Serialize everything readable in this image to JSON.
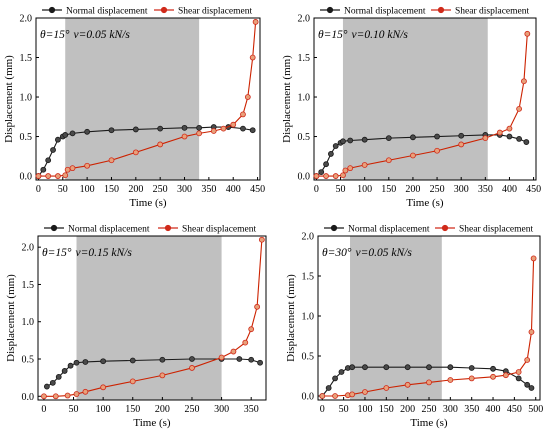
{
  "colors": {
    "normal": "#1a1a1a",
    "shear": "#d02a1a",
    "shear_fill": "#e8a07a",
    "band": "#c0c0c0",
    "band_edge": "#8a8a8a",
    "tail_line": "#cc2200"
  },
  "chart_data": [
    {
      "type": "line",
      "annotation": {
        "theta": "θ=15°",
        "rate": "v=0.05 kN/s"
      },
      "xlabel": "Time (s)",
      "ylabel": "Displacement (mm)",
      "xlim": [
        -5,
        455
      ],
      "ylim": [
        -0.05,
        2.0
      ],
      "xticks": [
        "0",
        "50",
        "100",
        "150",
        "200",
        "250",
        "300",
        "350",
        "400",
        "450"
      ],
      "yticks": [
        "0.0",
        "0.5",
        "1.0",
        "1.5",
        "2.0"
      ],
      "shaded_region": [
        55,
        330
      ],
      "legend": {
        "position": "top",
        "items": [
          "Normal displacement",
          "Shear displacement"
        ]
      },
      "series": [
        {
          "name": "Normal displacement",
          "style": "circle",
          "x": [
            0,
            10,
            20,
            30,
            40,
            50,
            55,
            70,
            100,
            150,
            200,
            250,
            300,
            330,
            360,
            390,
            420,
            440
          ],
          "y": [
            0.0,
            0.08,
            0.2,
            0.33,
            0.46,
            0.5,
            0.52,
            0.54,
            0.56,
            0.58,
            0.59,
            0.6,
            0.61,
            0.61,
            0.62,
            0.62,
            0.6,
            0.58
          ]
        },
        {
          "name": "Shear displacement",
          "style": "circle",
          "x": [
            0,
            20,
            40,
            55,
            60,
            70,
            100,
            150,
            200,
            250,
            300,
            330,
            360,
            380,
            400,
            420,
            430,
            440,
            446
          ],
          "y": [
            0.0,
            0.0,
            0.0,
            0.01,
            0.08,
            0.1,
            0.13,
            0.2,
            0.3,
            0.4,
            0.5,
            0.54,
            0.57,
            0.6,
            0.65,
            0.78,
            1.0,
            1.5,
            1.95
          ]
        }
      ]
    },
    {
      "type": "line",
      "annotation": {
        "theta": "θ=15°",
        "rate": "v=0.10 kN/s"
      },
      "xlabel": "Time (s)",
      "ylabel": "Displacement (mm)",
      "xlim": [
        -5,
        455
      ],
      "ylim": [
        -0.05,
        2.0
      ],
      "xticks": [
        "0",
        "50",
        "100",
        "150",
        "200",
        "250",
        "300",
        "350",
        "400",
        "450"
      ],
      "yticks": [
        "0.0",
        "0.5",
        "1.0",
        "1.5",
        "2.0"
      ],
      "shaded_region": [
        55,
        355
      ],
      "legend": {
        "position": "top",
        "items": [
          "Normal displacement",
          "Shear displacement"
        ]
      },
      "series": [
        {
          "name": "Normal displacement",
          "style": "circle",
          "x": [
            0,
            10,
            20,
            30,
            40,
            50,
            55,
            70,
            100,
            150,
            200,
            250,
            300,
            350,
            380,
            400,
            420,
            435
          ],
          "y": [
            0.0,
            0.05,
            0.15,
            0.28,
            0.38,
            0.42,
            0.44,
            0.45,
            0.46,
            0.48,
            0.49,
            0.5,
            0.51,
            0.52,
            0.52,
            0.5,
            0.47,
            0.43
          ]
        },
        {
          "name": "Shear displacement",
          "style": "circle",
          "x": [
            0,
            20,
            40,
            55,
            60,
            70,
            100,
            150,
            200,
            250,
            300,
            350,
            380,
            400,
            420,
            430,
            437
          ],
          "y": [
            0.0,
            0.0,
            0.0,
            0.01,
            0.07,
            0.1,
            0.14,
            0.2,
            0.26,
            0.32,
            0.4,
            0.48,
            0.55,
            0.6,
            0.85,
            1.2,
            1.8
          ]
        }
      ]
    },
    {
      "type": "line",
      "annotation": {
        "theta": "θ=15°",
        "rate": "v=0.15 kN/s"
      },
      "xlabel": "Time (s)",
      "ylabel": "Displacement (mm)",
      "xlim": [
        -10,
        375
      ],
      "ylim": [
        -0.05,
        2.15
      ],
      "xticks": [
        "0",
        "50",
        "100",
        "150",
        "200",
        "250",
        "300",
        "350"
      ],
      "yticks": [
        "0.0",
        "0.5",
        "1.0",
        "1.5",
        "2.0"
      ],
      "shaded_region": [
        55,
        300
      ],
      "legend": {
        "position": "top",
        "items": [
          "Normal displacement",
          "Shear displacement"
        ]
      },
      "series": [
        {
          "name": "Normal displacement",
          "style": "circle",
          "x": [
            5,
            15,
            25,
            35,
            45,
            55,
            70,
            100,
            150,
            200,
            250,
            300,
            330,
            350,
            365
          ],
          "y": [
            0.13,
            0.18,
            0.26,
            0.34,
            0.41,
            0.45,
            0.46,
            0.47,
            0.48,
            0.49,
            0.5,
            0.5,
            0.5,
            0.49,
            0.45
          ]
        },
        {
          "name": "Shear displacement",
          "style": "circle",
          "x": [
            0,
            20,
            40,
            55,
            70,
            100,
            150,
            200,
            250,
            300,
            320,
            340,
            350,
            360,
            368
          ],
          "y": [
            0.0,
            0.0,
            0.01,
            0.03,
            0.06,
            0.12,
            0.2,
            0.28,
            0.38,
            0.52,
            0.6,
            0.72,
            0.9,
            1.2,
            2.1
          ]
        }
      ]
    },
    {
      "type": "line",
      "annotation": {
        "theta": "θ=30°",
        "rate": "v=0.05 kN/s"
      },
      "xlabel": "Time (s)",
      "ylabel": "Displacement (mm)",
      "xlim": [
        -10,
        510
      ],
      "ylim": [
        -0.05,
        2.0
      ],
      "xticks": [
        "0",
        "50",
        "100",
        "150",
        "200",
        "250",
        "300",
        "350",
        "400",
        "450",
        "500"
      ],
      "yticks": [
        "0.0",
        "0.5",
        "1.0",
        "1.5",
        "2.0"
      ],
      "shaded_region": [
        65,
        280
      ],
      "legend": {
        "position": "top",
        "items": [
          "Normal displacement",
          "Shear displacement"
        ]
      },
      "series": [
        {
          "name": "Normal displacement",
          "style": "circle",
          "x": [
            0,
            15,
            30,
            45,
            60,
            70,
            100,
            150,
            200,
            250,
            300,
            350,
            400,
            430,
            460,
            480,
            490
          ],
          "y": [
            0.0,
            0.1,
            0.22,
            0.3,
            0.35,
            0.36,
            0.36,
            0.36,
            0.36,
            0.36,
            0.36,
            0.35,
            0.34,
            0.31,
            0.22,
            0.14,
            0.1
          ]
        },
        {
          "name": "Shear displacement",
          "style": "circle",
          "x": [
            0,
            30,
            60,
            70,
            100,
            150,
            200,
            250,
            300,
            350,
            400,
            430,
            460,
            480,
            490,
            495
          ],
          "y": [
            0.0,
            0.0,
            0.01,
            0.02,
            0.05,
            0.1,
            0.14,
            0.17,
            0.2,
            0.22,
            0.24,
            0.26,
            0.3,
            0.45,
            0.8,
            1.72
          ]
        }
      ]
    }
  ]
}
